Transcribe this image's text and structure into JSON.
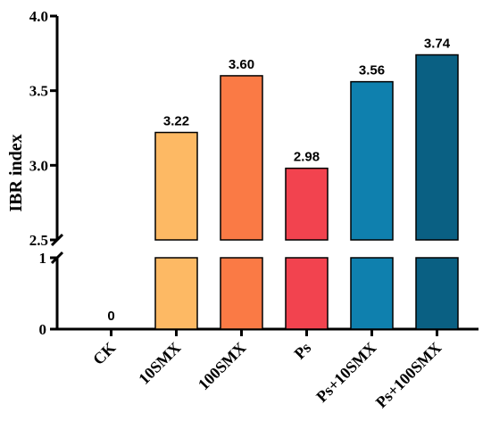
{
  "chart_data": {
    "type": "bar",
    "categories": [
      "CK",
      "10SMX",
      "100SMX",
      "Ps",
      "Ps+10SMX",
      "Ps+100SMX"
    ],
    "values": [
      0,
      3.22,
      3.6,
      2.98,
      3.56,
      3.74
    ],
    "value_labels": [
      "0",
      "3.22",
      "3.60",
      "2.98",
      "3.56",
      "3.74"
    ],
    "colors": [
      "#ffffff",
      "#FDB964",
      "#FA7A45",
      "#F2434F",
      "#0F80AE",
      "#0A6083"
    ],
    "ylabel": "IBR index",
    "y_axis": {
      "broken": true,
      "lower_segment": [
        0,
        1
      ],
      "upper_segment": [
        2.5,
        4.0
      ],
      "lower_ticks": [
        "0",
        "1"
      ],
      "upper_ticks": [
        "2.5",
        "3.0",
        "3.5",
        "4.0"
      ]
    },
    "grid": false,
    "legend": "none"
  }
}
